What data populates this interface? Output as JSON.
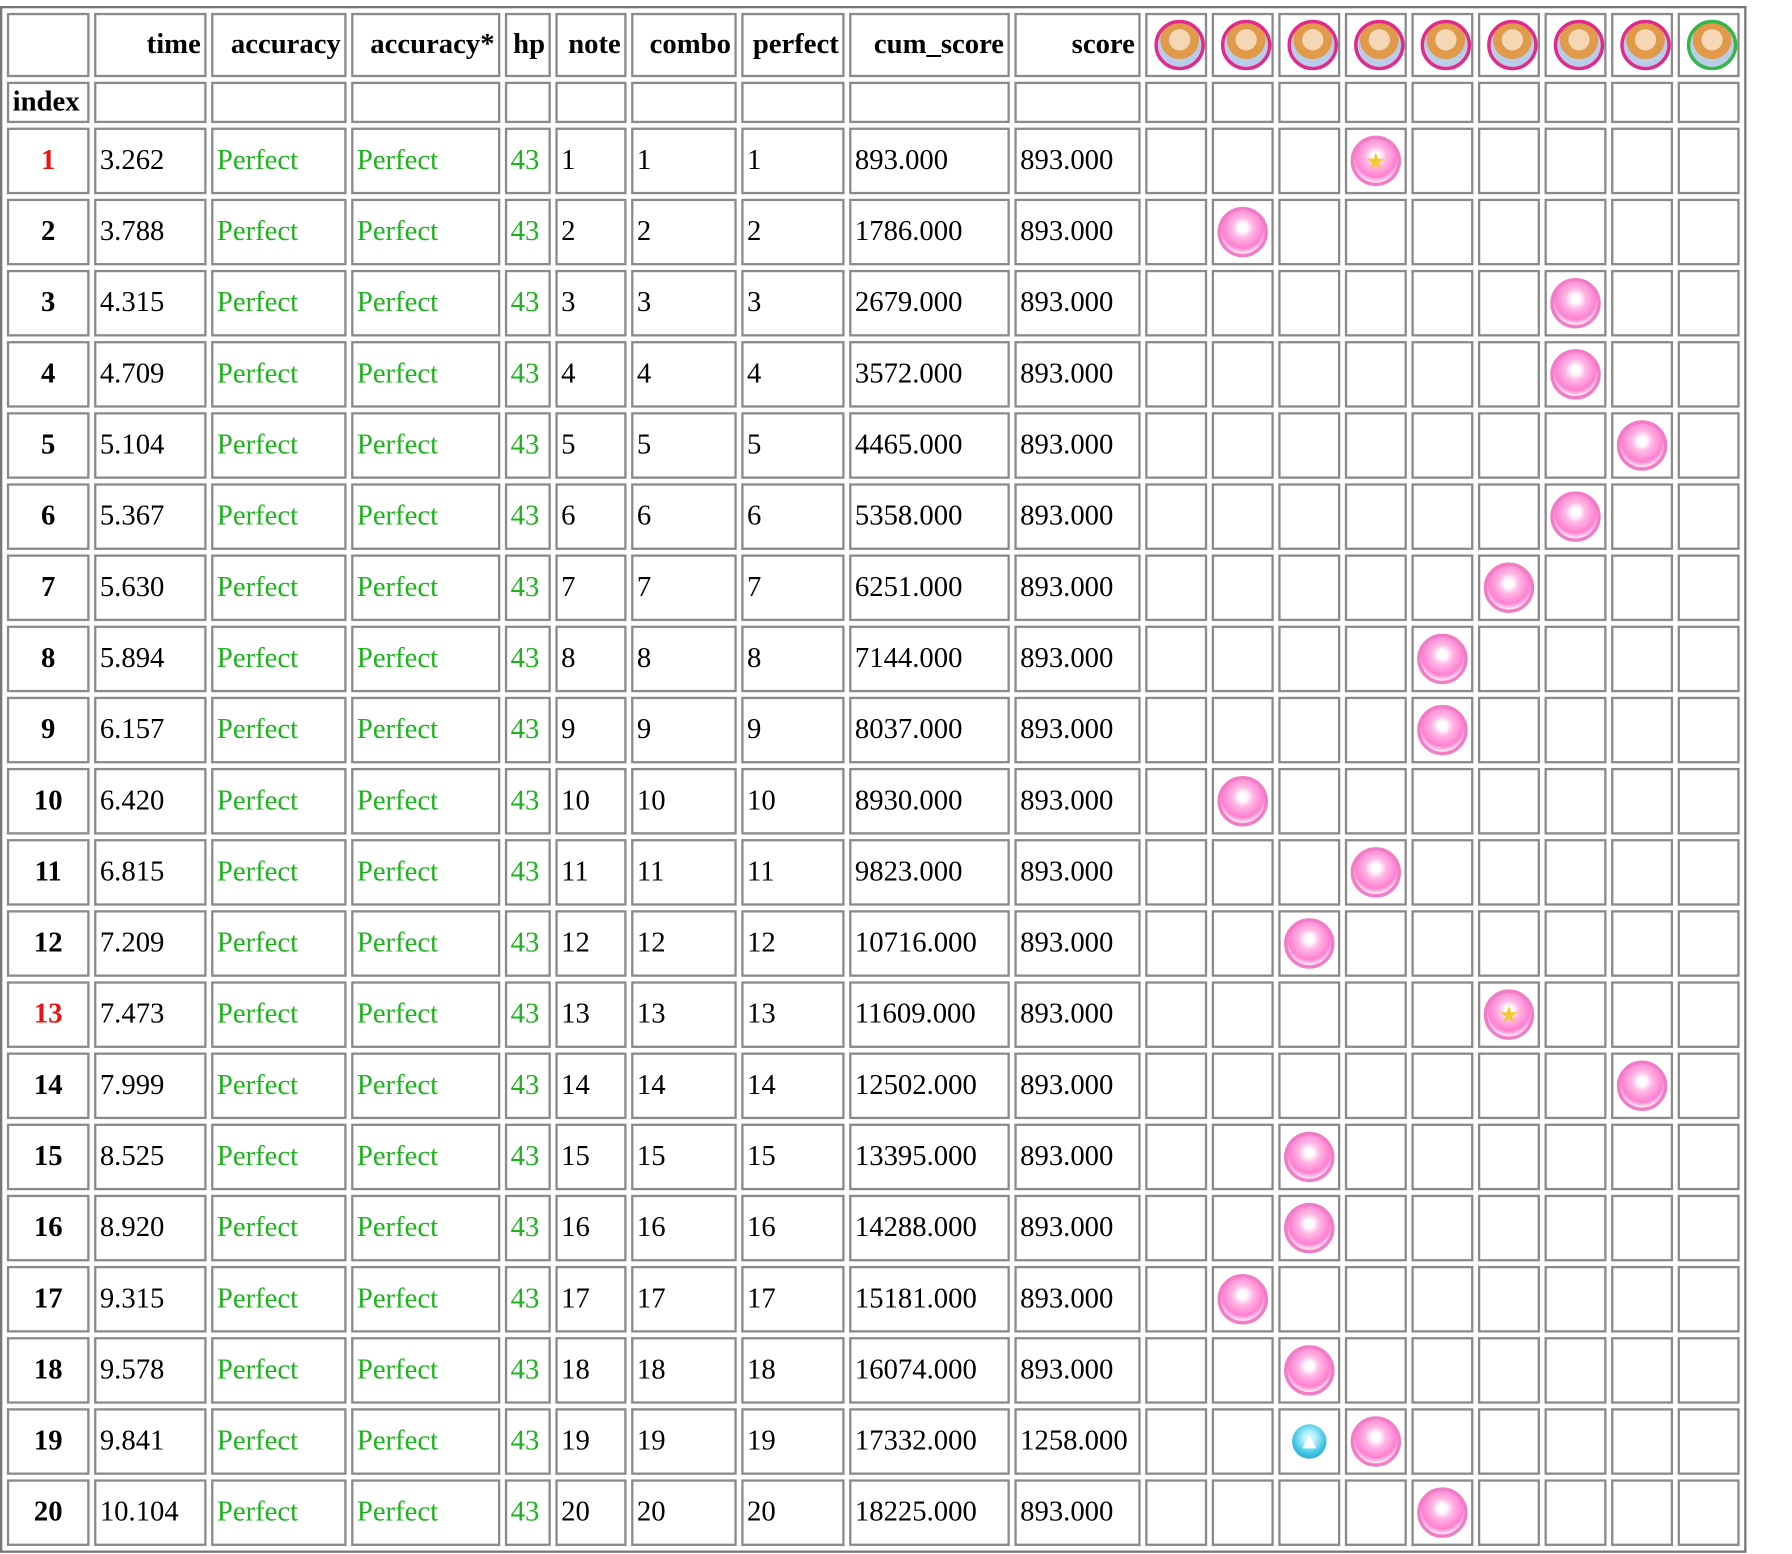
{
  "table": {
    "columns": [
      "time",
      "accuracy",
      "accuracy*",
      "hp",
      "note",
      "combo",
      "perfect",
      "cum_score",
      "score"
    ],
    "index_label": "index",
    "member_icons": [
      {
        "name": "member-1-avatar-icon",
        "frame": "pink"
      },
      {
        "name": "member-2-avatar-icon",
        "frame": "pink"
      },
      {
        "name": "member-3-avatar-icon",
        "frame": "pink"
      },
      {
        "name": "member-4-avatar-icon",
        "frame": "pink"
      },
      {
        "name": "member-5-avatar-icon",
        "frame": "pink"
      },
      {
        "name": "member-6-avatar-icon",
        "frame": "pink"
      },
      {
        "name": "member-7-avatar-icon",
        "frame": "pink"
      },
      {
        "name": "member-8-avatar-icon",
        "frame": "pink"
      },
      {
        "name": "member-9-avatar-icon",
        "frame": "green"
      }
    ],
    "colors": {
      "accuracy_text": "#1cb41c",
      "highlight_index": "#e11111",
      "note_pink": "#ff7fd0",
      "boost_blue": "#3cc4e0"
    },
    "rows": [
      {
        "index": "1",
        "highlight": true,
        "time": "3.262",
        "accuracy": "Perfect",
        "accuracy_star": "Perfect",
        "hp": "43",
        "note": "1",
        "combo": "1",
        "perfect": "1",
        "cum_score": "893.000",
        "score": "893.000",
        "lane": 4,
        "note_icon": "star-note-icon"
      },
      {
        "index": "2",
        "highlight": false,
        "time": "3.788",
        "accuracy": "Perfect",
        "accuracy_star": "Perfect",
        "hp": "43",
        "note": "2",
        "combo": "2",
        "perfect": "2",
        "cum_score": "1786.000",
        "score": "893.000",
        "lane": 2,
        "note_icon": "note-icon"
      },
      {
        "index": "3",
        "highlight": false,
        "time": "4.315",
        "accuracy": "Perfect",
        "accuracy_star": "Perfect",
        "hp": "43",
        "note": "3",
        "combo": "3",
        "perfect": "3",
        "cum_score": "2679.000",
        "score": "893.000",
        "lane": 7,
        "note_icon": "note-icon"
      },
      {
        "index": "4",
        "highlight": false,
        "time": "4.709",
        "accuracy": "Perfect",
        "accuracy_star": "Perfect",
        "hp": "43",
        "note": "4",
        "combo": "4",
        "perfect": "4",
        "cum_score": "3572.000",
        "score": "893.000",
        "lane": 7,
        "note_icon": "note-icon"
      },
      {
        "index": "5",
        "highlight": false,
        "time": "5.104",
        "accuracy": "Perfect",
        "accuracy_star": "Perfect",
        "hp": "43",
        "note": "5",
        "combo": "5",
        "perfect": "5",
        "cum_score": "4465.000",
        "score": "893.000",
        "lane": 8,
        "note_icon": "note-icon"
      },
      {
        "index": "6",
        "highlight": false,
        "time": "5.367",
        "accuracy": "Perfect",
        "accuracy_star": "Perfect",
        "hp": "43",
        "note": "6",
        "combo": "6",
        "perfect": "6",
        "cum_score": "5358.000",
        "score": "893.000",
        "lane": 7,
        "note_icon": "note-icon"
      },
      {
        "index": "7",
        "highlight": false,
        "time": "5.630",
        "accuracy": "Perfect",
        "accuracy_star": "Perfect",
        "hp": "43",
        "note": "7",
        "combo": "7",
        "perfect": "7",
        "cum_score": "6251.000",
        "score": "893.000",
        "lane": 6,
        "note_icon": "note-icon"
      },
      {
        "index": "8",
        "highlight": false,
        "time": "5.894",
        "accuracy": "Perfect",
        "accuracy_star": "Perfect",
        "hp": "43",
        "note": "8",
        "combo": "8",
        "perfect": "8",
        "cum_score": "7144.000",
        "score": "893.000",
        "lane": 5,
        "note_icon": "note-icon"
      },
      {
        "index": "9",
        "highlight": false,
        "time": "6.157",
        "accuracy": "Perfect",
        "accuracy_star": "Perfect",
        "hp": "43",
        "note": "9",
        "combo": "9",
        "perfect": "9",
        "cum_score": "8037.000",
        "score": "893.000",
        "lane": 5,
        "note_icon": "note-icon"
      },
      {
        "index": "10",
        "highlight": false,
        "time": "6.420",
        "accuracy": "Perfect",
        "accuracy_star": "Perfect",
        "hp": "43",
        "note": "10",
        "combo": "10",
        "perfect": "10",
        "cum_score": "8930.000",
        "score": "893.000",
        "lane": 2,
        "note_icon": "note-icon"
      },
      {
        "index": "11",
        "highlight": false,
        "time": "6.815",
        "accuracy": "Perfect",
        "accuracy_star": "Perfect",
        "hp": "43",
        "note": "11",
        "combo": "11",
        "perfect": "11",
        "cum_score": "9823.000",
        "score": "893.000",
        "lane": 4,
        "note_icon": "note-icon"
      },
      {
        "index": "12",
        "highlight": false,
        "time": "7.209",
        "accuracy": "Perfect",
        "accuracy_star": "Perfect",
        "hp": "43",
        "note": "12",
        "combo": "12",
        "perfect": "12",
        "cum_score": "10716.000",
        "score": "893.000",
        "lane": 3,
        "note_icon": "note-icon"
      },
      {
        "index": "13",
        "highlight": true,
        "time": "7.473",
        "accuracy": "Perfect",
        "accuracy_star": "Perfect",
        "hp": "43",
        "note": "13",
        "combo": "13",
        "perfect": "13",
        "cum_score": "11609.000",
        "score": "893.000",
        "lane": 6,
        "note_icon": "star-note-icon"
      },
      {
        "index": "14",
        "highlight": false,
        "time": "7.999",
        "accuracy": "Perfect",
        "accuracy_star": "Perfect",
        "hp": "43",
        "note": "14",
        "combo": "14",
        "perfect": "14",
        "cum_score": "12502.000",
        "score": "893.000",
        "lane": 8,
        "note_icon": "note-icon"
      },
      {
        "index": "15",
        "highlight": false,
        "time": "8.525",
        "accuracy": "Perfect",
        "accuracy_star": "Perfect",
        "hp": "43",
        "note": "15",
        "combo": "15",
        "perfect": "15",
        "cum_score": "13395.000",
        "score": "893.000",
        "lane": 3,
        "note_icon": "note-icon"
      },
      {
        "index": "16",
        "highlight": false,
        "time": "8.920",
        "accuracy": "Perfect",
        "accuracy_star": "Perfect",
        "hp": "43",
        "note": "16",
        "combo": "16",
        "perfect": "16",
        "cum_score": "14288.000",
        "score": "893.000",
        "lane": 3,
        "note_icon": "note-icon"
      },
      {
        "index": "17",
        "highlight": false,
        "time": "9.315",
        "accuracy": "Perfect",
        "accuracy_star": "Perfect",
        "hp": "43",
        "note": "17",
        "combo": "17",
        "perfect": "17",
        "cum_score": "15181.000",
        "score": "893.000",
        "lane": 2,
        "note_icon": "note-icon"
      },
      {
        "index": "18",
        "highlight": false,
        "time": "9.578",
        "accuracy": "Perfect",
        "accuracy_star": "Perfect",
        "hp": "43",
        "note": "18",
        "combo": "18",
        "perfect": "18",
        "cum_score": "16074.000",
        "score": "893.000",
        "lane": 3,
        "note_icon": "note-icon"
      },
      {
        "index": "19",
        "highlight": false,
        "time": "9.841",
        "accuracy": "Perfect",
        "accuracy_star": "Perfect",
        "hp": "43",
        "note": "19",
        "combo": "19",
        "perfect": "19",
        "cum_score": "17332.000",
        "score": "1258.000",
        "lane": 4,
        "note_icon": "note-icon",
        "boost_lane": 3
      },
      {
        "index": "20",
        "highlight": false,
        "time": "10.104",
        "accuracy": "Perfect",
        "accuracy_star": "Perfect",
        "hp": "43",
        "note": "20",
        "combo": "20",
        "perfect": "20",
        "cum_score": "18225.000",
        "score": "893.000",
        "lane": 5,
        "note_icon": "note-icon"
      }
    ]
  }
}
